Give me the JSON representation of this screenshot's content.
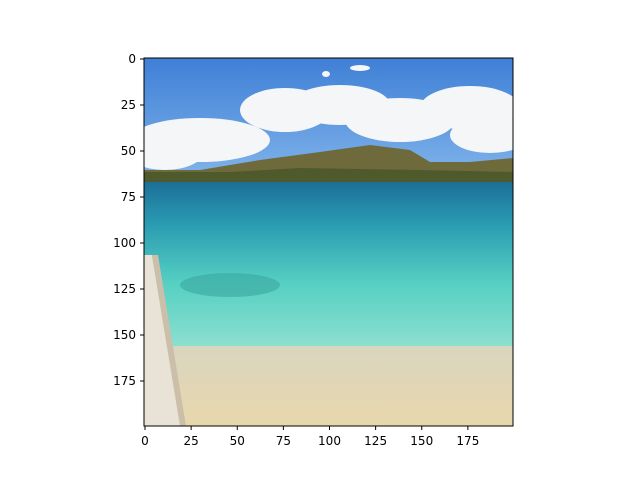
{
  "image": {
    "description_icon": "beach-landscape-image",
    "sky_color": "#4a86d8",
    "sea_deep_color": "#1f7fa3",
    "sea_light_color": "#5fd6c4",
    "sand_color": "#e6d6ad"
  },
  "axes": {
    "x_ticks": [
      "0",
      "25",
      "50",
      "75",
      "100",
      "125",
      "150",
      "175"
    ],
    "y_ticks": [
      "0",
      "25",
      "50",
      "75",
      "100",
      "125",
      "150",
      "175"
    ],
    "x_tick_values": [
      0,
      25,
      50,
      75,
      100,
      125,
      150,
      175
    ],
    "y_tick_values": [
      0,
      25,
      50,
      75,
      100,
      125,
      150,
      175
    ],
    "xlim": [
      0,
      200
    ],
    "ylim": [
      0,
      200
    ]
  }
}
